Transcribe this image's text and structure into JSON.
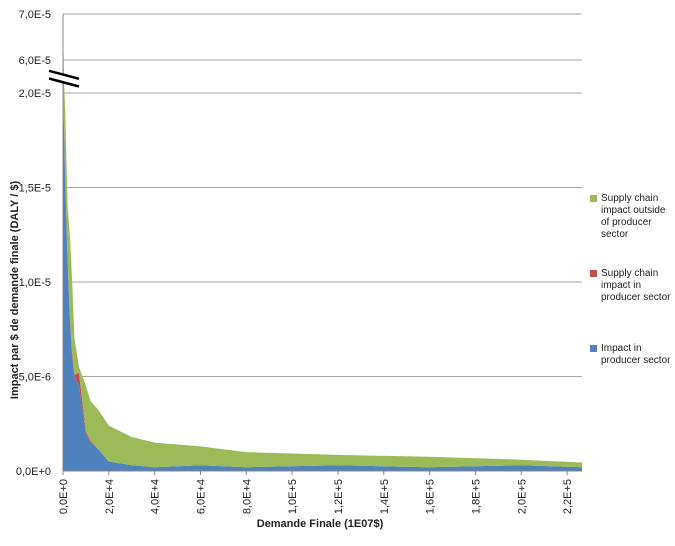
{
  "chart_data": {
    "type": "area",
    "stacked": true,
    "x_label": "Demande Finale (1E07$)",
    "y_label": "Impact par $ de demande finale  (DALY / $)",
    "x": [
      0,
      500,
      1000,
      2000,
      3000,
      4000,
      5000,
      7000,
      10000,
      12000,
      15000,
      20000,
      30000,
      40000,
      60000,
      80000,
      120000,
      160000,
      200000,
      226500
    ],
    "series": [
      {
        "name": "Impact in producer sector",
        "color": "#4f81bd",
        "values": [
          2e-05,
          1.8e-05,
          1.5e-05,
          1.1e-05,
          8e-06,
          6e-06,
          5e-06,
          4.5e-06,
          2e-06,
          1.5e-06,
          1.2e-06,
          5e-07,
          3e-07,
          2e-07,
          3e-07,
          2e-07,
          3e-07,
          2e-07,
          3e-07,
          2e-07
        ]
      },
      {
        "name": "Supply chain impact in producer sector",
        "color": "#c0504d",
        "values": [
          5e-07,
          3e-07,
          3e-07,
          2e-07,
          2e-07,
          2e-07,
          1e-07,
          7e-07,
          1e-07,
          1e-07,
          0,
          0,
          0,
          0,
          0,
          0,
          0,
          0,
          0,
          0
        ]
      },
      {
        "name": "Supply chain impact outside of producer sector",
        "color": "#9bbb59",
        "values": [
          4.75e-05,
          3.7e-06,
          3.7e-06,
          2.8e-06,
          4.3e-06,
          3.8e-06,
          1.9e-06,
          3e-07,
          2.4e-06,
          2.1e-06,
          2.1e-06,
          1.9e-06,
          1.5e-06,
          1.3e-06,
          1e-06,
          8e-07,
          5.5e-07,
          5.5e-07,
          3e-07,
          2.5e-07
        ]
      }
    ],
    "xlim": [
      0,
      226500
    ],
    "xticks": [
      {
        "value": 0,
        "label": "0,0E+0"
      },
      {
        "value": 20000,
        "label": "2,0E+4"
      },
      {
        "value": 40000,
        "label": "4,0E+4"
      },
      {
        "value": 60000,
        "label": "6,0E+4"
      },
      {
        "value": 80000,
        "label": "8,0E+4"
      },
      {
        "value": 100000,
        "label": "1,0E+5"
      },
      {
        "value": 120000,
        "label": "1,2E+5"
      },
      {
        "value": 140000,
        "label": "1,4E+5"
      },
      {
        "value": 160000,
        "label": "1,6E+5"
      },
      {
        "value": 180000,
        "label": "1,8E+5"
      },
      {
        "value": 200000,
        "label": "2,0E+5"
      },
      {
        "value": 220000,
        "label": "2,2E+5"
      }
    ],
    "ylim": [
      0,
      7e-05
    ],
    "y_break": [
      2.05e-05,
      5.7e-05
    ],
    "yticks": [
      {
        "value": 0,
        "label": "0,0E+0"
      },
      {
        "value": 5e-06,
        "label": "5,0E-6"
      },
      {
        "value": 1e-05,
        "label": "1,0E-5"
      },
      {
        "value": 1.5e-05,
        "label": "1,5E-5"
      },
      {
        "value": 2e-05,
        "label": "2,0E-5"
      },
      {
        "value": 6e-05,
        "label": "6,0E-5"
      },
      {
        "value": 7e-05,
        "label": "7,0E-5"
      }
    ],
    "grid": true,
    "legend": "right"
  }
}
